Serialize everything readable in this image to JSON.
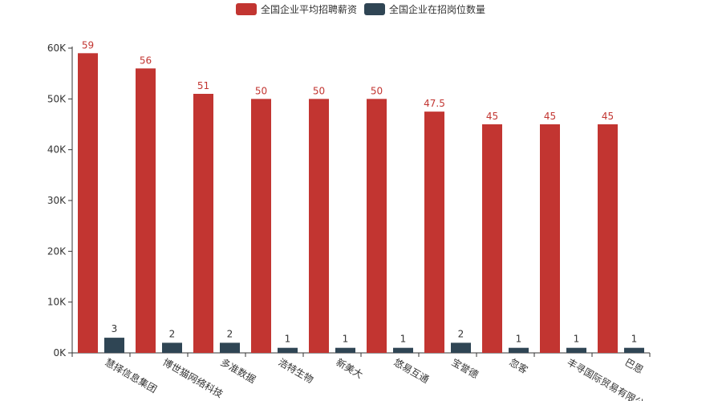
{
  "chart_data": {
    "type": "bar",
    "title": "",
    "xlabel": "",
    "ylabel": "",
    "legend_position": "top-center",
    "categories": [
      "慧择信息集团",
      "博世猫网络科技",
      "多准数据",
      "浩特生物",
      "新美大",
      "悠易互通",
      "宝誉德",
      "忽客",
      "丰寻国际贸易有限公司",
      "巴恩"
    ],
    "series": [
      {
        "name": "全国企业平均招聘薪资",
        "color": "#c23531",
        "values": [
          59000,
          56000,
          51000,
          50000,
          50000,
          50000,
          47500,
          45000,
          45000,
          45000
        ],
        "labels": [
          "59",
          "56",
          "51",
          "50",
          "50",
          "50",
          "47.5",
          "45",
          "45",
          "45"
        ]
      },
      {
        "name": "全国企业在招岗位数量",
        "color": "#2f4554",
        "values": [
          3,
          2,
          2,
          1,
          1,
          1,
          2,
          1,
          1,
          1
        ],
        "labels": [
          "3",
          "2",
          "2",
          "1",
          "1",
          "1",
          "2",
          "1",
          "1",
          "1"
        ]
      }
    ],
    "yticks": [
      "0K",
      "10K",
      "20K",
      "30K",
      "40K",
      "50K",
      "60K"
    ],
    "ylim": [
      0,
      60000
    ],
    "grid": false
  }
}
